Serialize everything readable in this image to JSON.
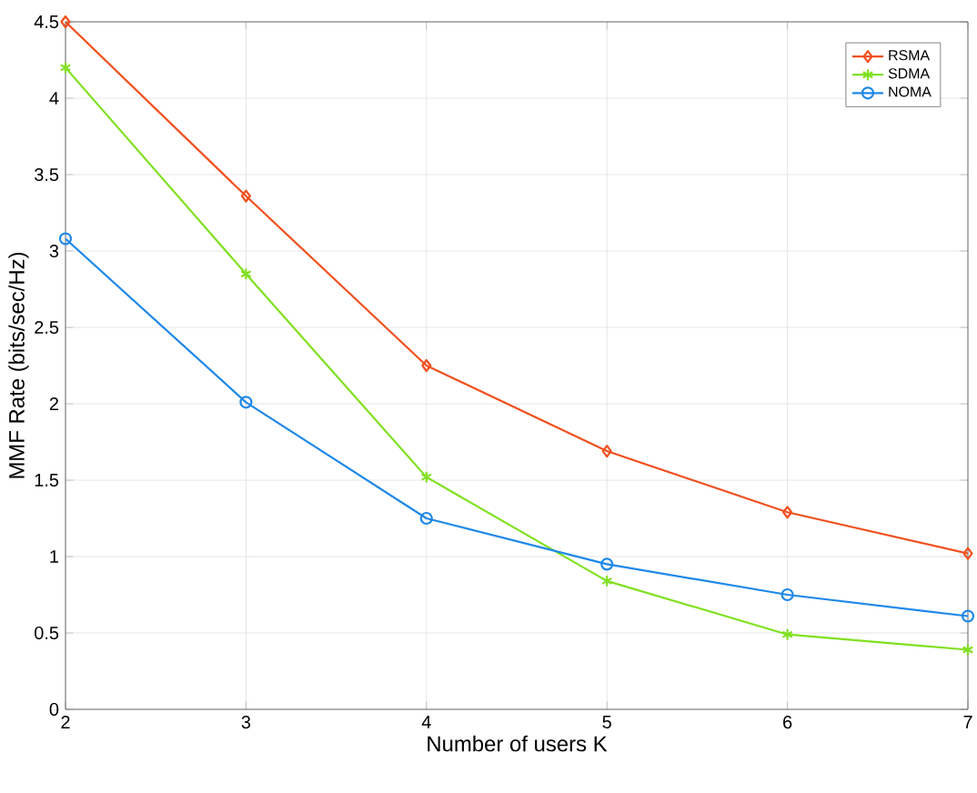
{
  "chart_data": {
    "type": "line",
    "xlabel": "Number of users K",
    "ylabel": "MMF Rate (bits/sec/Hz)",
    "x": [
      2,
      3,
      4,
      5,
      6,
      7
    ],
    "series": [
      {
        "name": "RSMA",
        "color": "#f0501e",
        "marker": "diamond",
        "values": [
          4.5,
          3.36,
          2.25,
          1.69,
          1.29,
          1.02
        ]
      },
      {
        "name": "SDMA",
        "color": "#80e020",
        "marker": "cross",
        "values": [
          4.2,
          2.85,
          1.52,
          0.84,
          0.49,
          0.39
        ]
      },
      {
        "name": "NOMA",
        "color": "#1e88e8",
        "marker": "circle",
        "values": [
          3.08,
          2.01,
          1.25,
          0.95,
          0.75,
          0.61
        ]
      }
    ],
    "xlim": [
      2,
      7
    ],
    "ylim": [
      0,
      4.5
    ],
    "xticks": [
      2,
      3,
      4,
      5,
      6,
      7
    ],
    "yticks": [
      0,
      0.5,
      1,
      1.5,
      2,
      2.5,
      3,
      3.5,
      4,
      4.5
    ],
    "grid": true,
    "legend": "top right",
    "line_style": "solid"
  }
}
